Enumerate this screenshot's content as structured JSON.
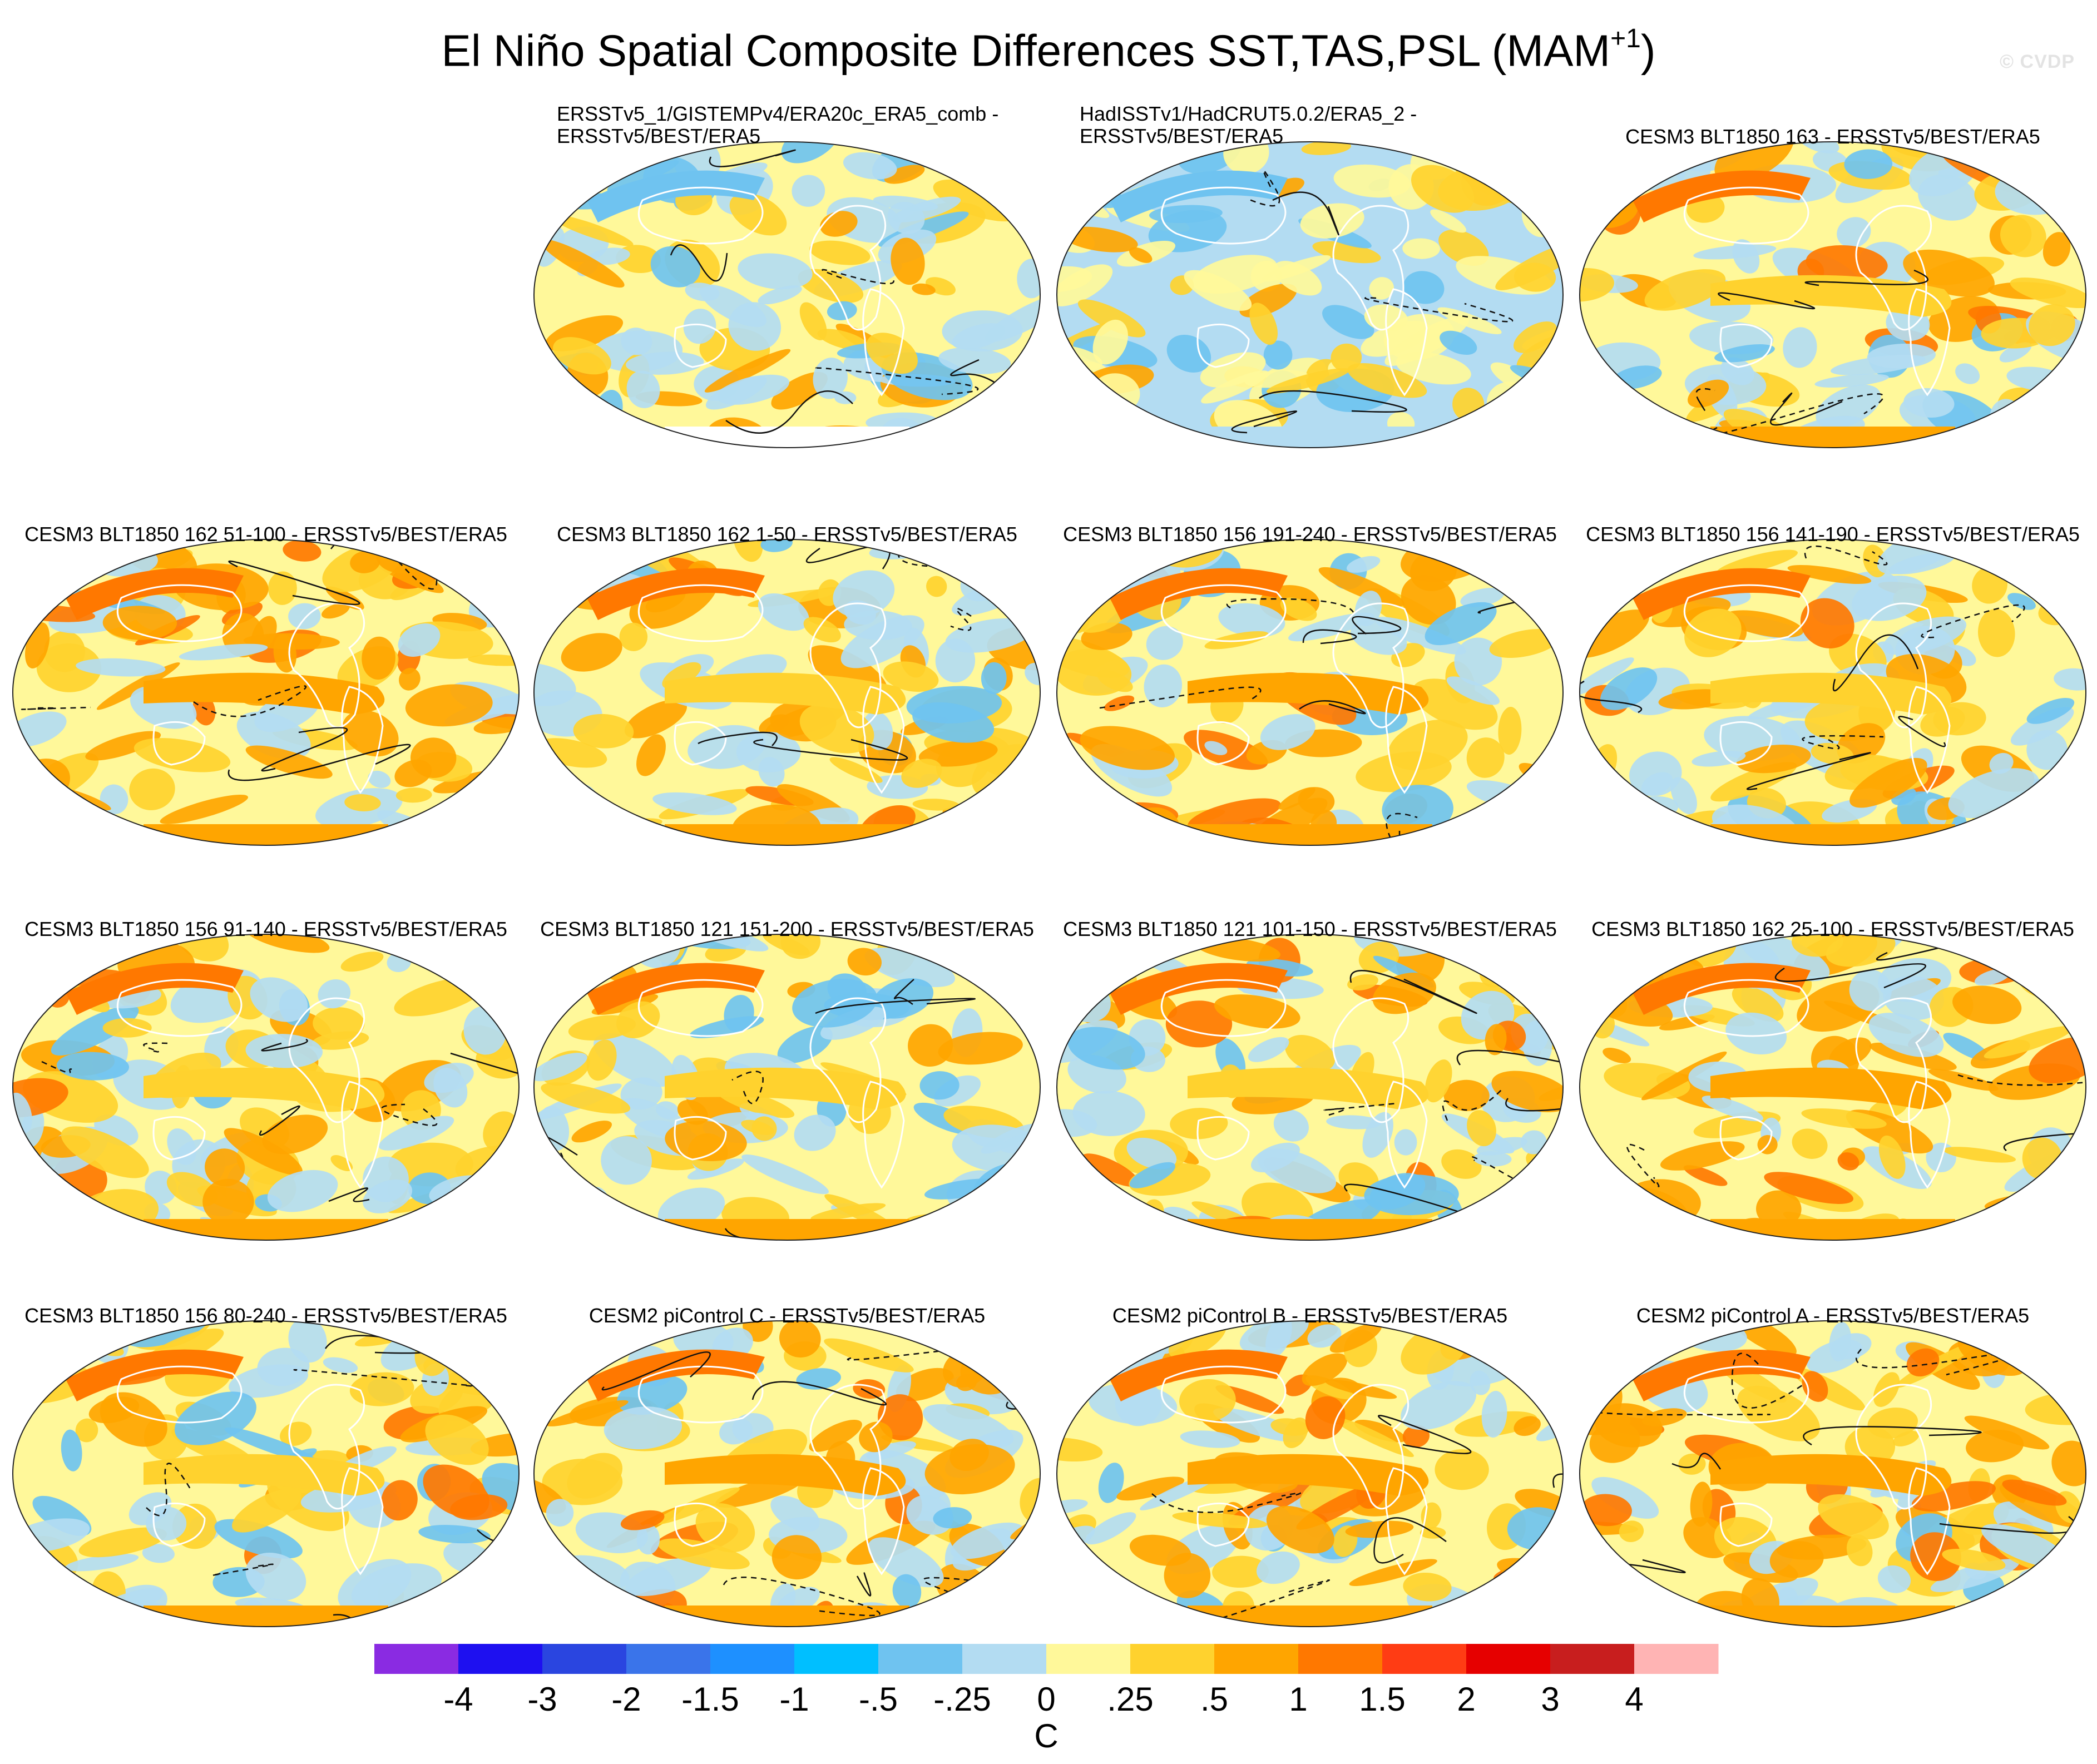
{
  "title": {
    "main": "El Niño Spatial Composite Differences SST,TAS,PSL (MAM",
    "sup": "+1",
    "close": ")"
  },
  "watermark": "© CVDP",
  "panels": [
    {
      "title": [
        "ERSSTv5_1/GISTEMPv4/ERA20c_ERA5_comb -",
        "ERSSTv5/BEST/ERA5"
      ],
      "scheme": 0
    },
    {
      "title": [
        "HadISSTv1/HadCRUT5.0.2/ERA5_2 -",
        "ERSSTv5/BEST/ERA5"
      ],
      "scheme": 1
    },
    {
      "title": [
        "CESM3 BLT1850 163 - ERSSTv5/BEST/ERA5"
      ],
      "scheme": 2
    },
    {
      "title": [
        "CESM3 BLT1850 162 51-100 - ERSSTv5/BEST/ERA5"
      ],
      "scheme": 3
    },
    {
      "title": [
        "CESM3 BLT1850 162 1-50 - ERSSTv5/BEST/ERA5"
      ],
      "scheme": 2
    },
    {
      "title": [
        "CESM3 BLT1850 156 191-240 - ERSSTv5/BEST/ERA5"
      ],
      "scheme": 3
    },
    {
      "title": [
        "CESM3 BLT1850 156 141-190 - ERSSTv5/BEST/ERA5"
      ],
      "scheme": 2
    },
    {
      "title": [
        "CESM3 BLT1850 156 91-140 - ERSSTv5/BEST/ERA5"
      ],
      "scheme": 2
    },
    {
      "title": [
        "CESM3 BLT1850 121 151-200 - ERSSTv5/BEST/ERA5"
      ],
      "scheme": 2
    },
    {
      "title": [
        "CESM3 BLT1850 121 101-150 - ERSSTv5/BEST/ERA5"
      ],
      "scheme": 2
    },
    {
      "title": [
        "CESM3 BLT1850 162 25-100 - ERSSTv5/BEST/ERA5"
      ],
      "scheme": 3
    },
    {
      "title": [
        "CESM3 BLT1850 156 80-240 - ERSSTv5/BEST/ERA5"
      ],
      "scheme": 2
    },
    {
      "title": [
        "CESM2 piControl C - ERSSTv5/BEST/ERA5"
      ],
      "scheme": 3
    },
    {
      "title": [
        "CESM2 piControl B - ERSSTv5/BEST/ERA5"
      ],
      "scheme": 3
    },
    {
      "title": [
        "CESM2 piControl A - ERSSTv5/BEST/ERA5"
      ],
      "scheme": 3
    }
  ],
  "colorbar": {
    "colors": [
      "#8a2be2",
      "#1e10f0",
      "#2a45e0",
      "#3a74ea",
      "#1e90ff",
      "#00bfff",
      "#6fc3f0",
      "#b3dcf2",
      "#fff89a",
      "#ffd22e",
      "#ffa500",
      "#ff7800",
      "#ff3c14",
      "#e60000",
      "#c81e1e",
      "#ffb4b4"
    ],
    "labels": [
      "-4",
      "-3",
      "-2",
      "-1.5",
      "-1",
      "-.5",
      "-.25",
      "0",
      ".25",
      ".5",
      "1",
      "1.5",
      "2",
      "3",
      "4"
    ],
    "unit": "C"
  }
}
